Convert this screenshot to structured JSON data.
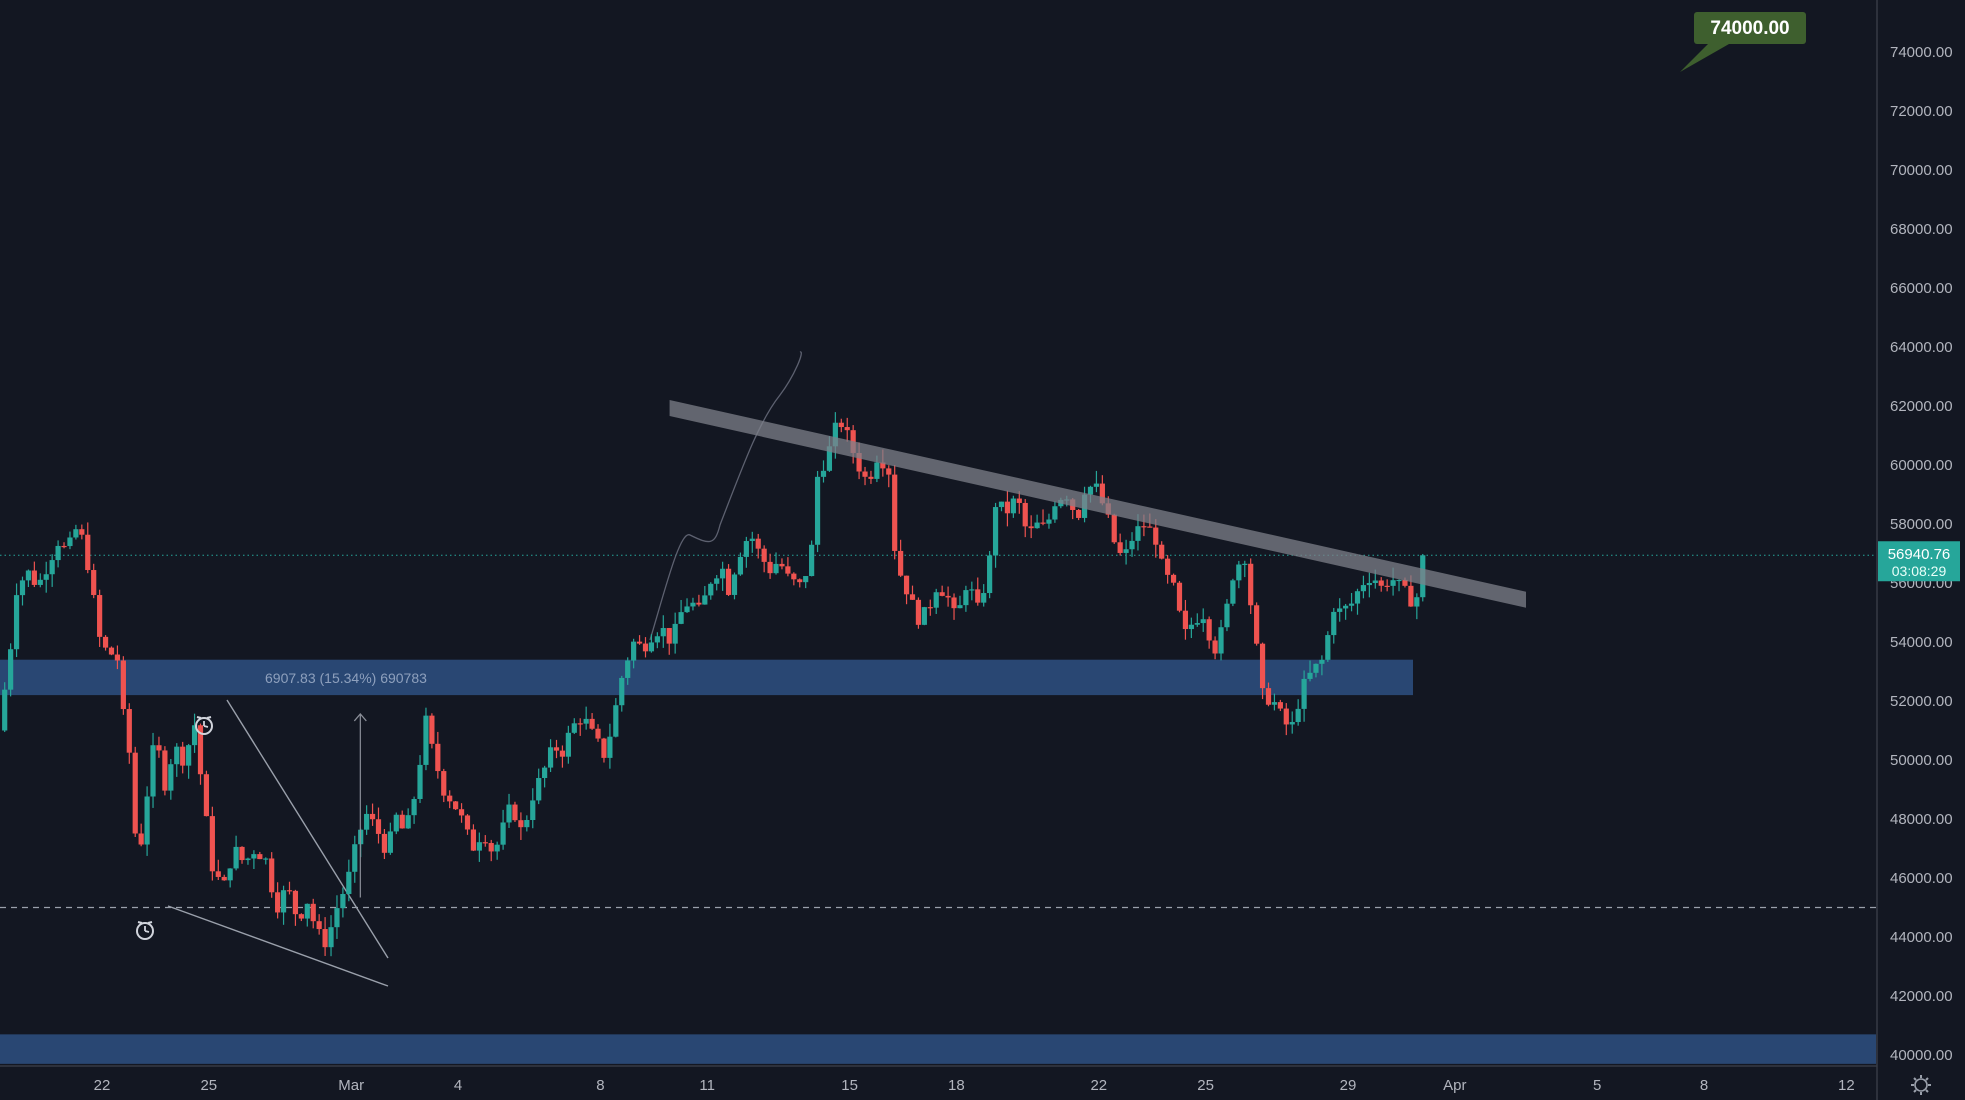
{
  "chart_data": {
    "type": "candlestick",
    "y_axis": {
      "range": [
        39600,
        75500
      ],
      "ticks": [
        "40000.00",
        "42000.00",
        "44000.00",
        "46000.00",
        "48000.00",
        "50000.00",
        "52000.00",
        "54000.00",
        "56000.00",
        "58000.00",
        "60000.00",
        "62000.00",
        "64000.00",
        "66000.00",
        "68000.00",
        "70000.00",
        "72000.00",
        "74000.00"
      ]
    },
    "x_axis": {
      "ticks": [
        {
          "label": "22",
          "day": 0
        },
        {
          "label": "25",
          "day": 3
        },
        {
          "label": "Mar",
          "day": 7
        },
        {
          "label": "4",
          "day": 10
        },
        {
          "label": "8",
          "day": 14
        },
        {
          "label": "11",
          "day": 17
        },
        {
          "label": "15",
          "day": 21
        },
        {
          "label": "18",
          "day": 24
        },
        {
          "label": "22",
          "day": 28
        },
        {
          "label": "25",
          "day": 31
        },
        {
          "label": "29",
          "day": 35
        },
        {
          "label": "Apr",
          "day": 38
        },
        {
          "label": "5",
          "day": 42
        },
        {
          "label": "8",
          "day": 45
        },
        {
          "label": "12",
          "day": 49
        }
      ]
    },
    "waypoints": [
      [
        -2.9,
        51000
      ],
      [
        -2.6,
        53500
      ],
      [
        -2.4,
        55800
      ],
      [
        -2.1,
        56400
      ],
      [
        -1.8,
        55900
      ],
      [
        -1.5,
        56700
      ],
      [
        -1.2,
        57500
      ],
      [
        -1.0,
        57000
      ],
      [
        -0.7,
        57900
      ],
      [
        -0.5,
        57300
      ],
      [
        -0.3,
        56000
      ],
      [
        -0.1,
        54200
      ],
      [
        0.2,
        53500
      ],
      [
        0.4,
        53800
      ],
      [
        0.6,
        51500
      ],
      [
        0.8,
        50000
      ],
      [
        1.0,
        46300
      ],
      [
        1.3,
        49200
      ],
      [
        1.5,
        50800
      ],
      [
        1.8,
        49000
      ],
      [
        2.0,
        50500
      ],
      [
        2.3,
        50000
      ],
      [
        2.6,
        51200
      ],
      [
        2.9,
        48200
      ],
      [
        3.1,
        46400
      ],
      [
        3.4,
        45600
      ],
      [
        3.7,
        47000
      ],
      [
        4.0,
        46500
      ],
      [
        4.3,
        47000
      ],
      [
        4.6,
        46600
      ],
      [
        4.9,
        45000
      ],
      [
        5.2,
        45700
      ],
      [
        5.5,
        44600
      ],
      [
        5.8,
        45300
      ],
      [
        6.0,
        44200
      ],
      [
        6.3,
        43800
      ],
      [
        6.6,
        45000
      ],
      [
        6.9,
        45900
      ],
      [
        7.2,
        47400
      ],
      [
        7.4,
        48200
      ],
      [
        7.7,
        47700
      ],
      [
        8.0,
        46900
      ],
      [
        8.3,
        48200
      ],
      [
        8.5,
        47400
      ],
      [
        8.8,
        48900
      ],
      [
        9.1,
        51300
      ],
      [
        9.3,
        50200
      ],
      [
        9.6,
        49000
      ],
      [
        9.9,
        48500
      ],
      [
        10.1,
        48000
      ],
      [
        10.4,
        47000
      ],
      [
        10.7,
        47600
      ],
      [
        11.0,
        46800
      ],
      [
        11.3,
        47800
      ],
      [
        11.5,
        48500
      ],
      [
        11.8,
        47500
      ],
      [
        12.1,
        48800
      ],
      [
        12.4,
        49600
      ],
      [
        12.7,
        50500
      ],
      [
        12.9,
        50200
      ],
      [
        13.2,
        51100
      ],
      [
        13.5,
        51500
      ],
      [
        13.8,
        50800
      ],
      [
        14.1,
        50200
      ],
      [
        14.3,
        51000
      ],
      [
        14.6,
        52800
      ],
      [
        14.9,
        54000
      ],
      [
        15.2,
        53800
      ],
      [
        15.4,
        54200
      ],
      [
        15.7,
        54500
      ],
      [
        16.0,
        54000
      ],
      [
        16.3,
        55100
      ],
      [
        16.5,
        55400
      ],
      [
        16.8,
        55000
      ],
      [
        17.1,
        56100
      ],
      [
        17.4,
        56600
      ],
      [
        17.6,
        55800
      ],
      [
        17.9,
        57000
      ],
      [
        18.2,
        57700
      ],
      [
        18.5,
        56900
      ],
      [
        18.8,
        56400
      ],
      [
        19.0,
        56800
      ],
      [
        19.3,
        56100
      ],
      [
        19.6,
        55900
      ],
      [
        19.9,
        56700
      ],
      [
        20.1,
        59600
      ],
      [
        20.4,
        60400
      ],
      [
        20.7,
        61600
      ],
      [
        21.0,
        60800
      ],
      [
        21.2,
        60100
      ],
      [
        21.5,
        59400
      ],
      [
        21.8,
        60400
      ],
      [
        22.1,
        59800
      ],
      [
        22.3,
        56700
      ],
      [
        22.6,
        55800
      ],
      [
        22.9,
        54800
      ],
      [
        23.2,
        55000
      ],
      [
        23.4,
        55900
      ],
      [
        23.7,
        55700
      ],
      [
        24.0,
        54700
      ],
      [
        24.3,
        56100
      ],
      [
        24.6,
        55100
      ],
      [
        24.9,
        56400
      ],
      [
        25.1,
        58700
      ],
      [
        25.4,
        58400
      ],
      [
        25.7,
        58900
      ],
      [
        26.0,
        57600
      ],
      [
        26.3,
        58000
      ],
      [
        26.5,
        57800
      ],
      [
        26.8,
        58900
      ],
      [
        27.1,
        59000
      ],
      [
        27.4,
        58200
      ],
      [
        27.6,
        59200
      ],
      [
        27.9,
        59300
      ],
      [
        28.2,
        58400
      ],
      [
        28.5,
        57100
      ],
      [
        28.7,
        56800
      ],
      [
        29.0,
        57700
      ],
      [
        29.3,
        58000
      ],
      [
        29.6,
        57500
      ],
      [
        29.8,
        56400
      ],
      [
        30.1,
        55800
      ],
      [
        30.4,
        54200
      ],
      [
        30.7,
        54800
      ],
      [
        31.0,
        55000
      ],
      [
        31.2,
        53600
      ],
      [
        31.5,
        54500
      ],
      [
        31.8,
        56500
      ],
      [
        32.1,
        56900
      ],
      [
        32.3,
        55000
      ],
      [
        32.6,
        52200
      ],
      [
        32.9,
        52000
      ],
      [
        33.2,
        51300
      ],
      [
        33.4,
        51000
      ],
      [
        33.7,
        52400
      ],
      [
        34.0,
        53000
      ],
      [
        34.3,
        53400
      ],
      [
        34.6,
        55200
      ],
      [
        34.8,
        55000
      ],
      [
        35.1,
        55300
      ],
      [
        35.4,
        56000
      ],
      [
        35.7,
        56300
      ],
      [
        35.9,
        55800
      ],
      [
        36.2,
        56200
      ],
      [
        36.5,
        55800
      ],
      [
        36.8,
        55400
      ],
      [
        37.0,
        55600
      ],
      [
        37.2,
        56940.76
      ]
    ],
    "horizontal_line": 45000,
    "support_zones": [
      {
        "from": 52200,
        "to": 53400
      },
      {
        "from": 39700,
        "to": 40700
      }
    ],
    "trendline": {
      "start": {
        "day": 16.0,
        "price": 62000
      },
      "end": {
        "day": 40.0,
        "price": 55500
      }
    },
    "measurement": {
      "label": "6907.83 (15.34%) 690783",
      "start": {
        "day": 7.2,
        "price": 45000
      },
      "end": {
        "day": 7.2,
        "price": 51900
      }
    },
    "current_price": {
      "value": "56940.76",
      "timer": "03:08:29"
    },
    "target": {
      "value": "74000.00",
      "price": 74000
    }
  }
}
